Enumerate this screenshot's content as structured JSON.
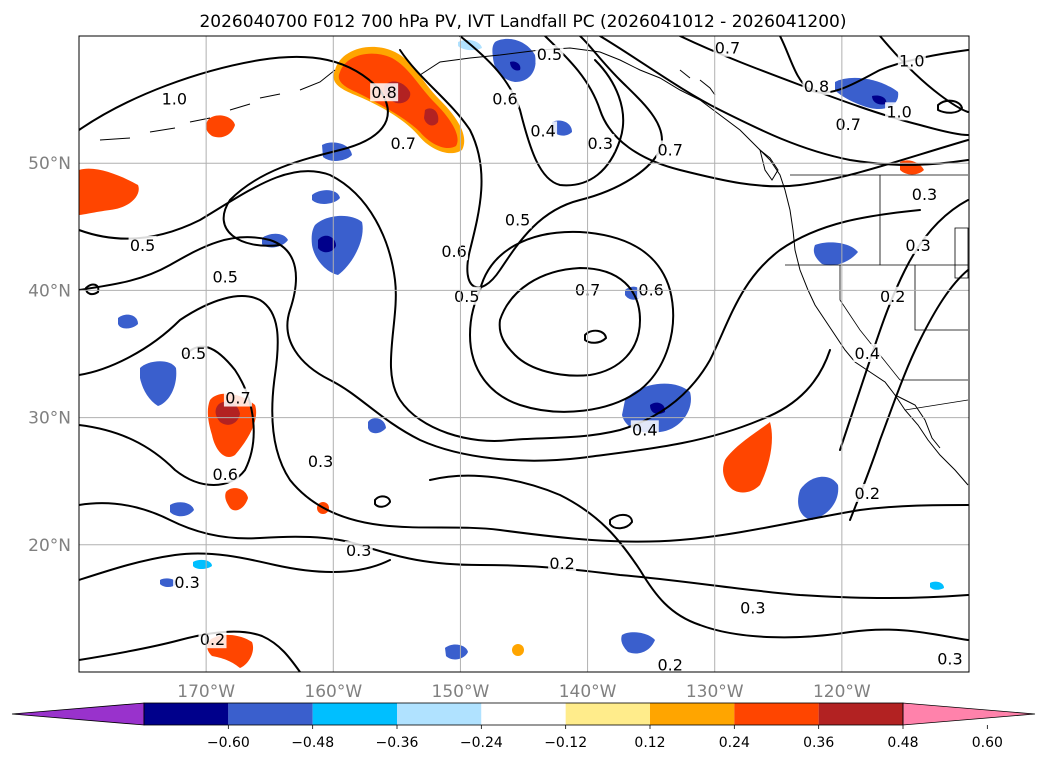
{
  "title": "2026040700 F012 700 hPa PV, IVT Landfall PC (2026041012 - 2026041200)",
  "map": {
    "extent": {
      "lon_min": -180,
      "lon_max": -110,
      "lat_min": 10,
      "lat_max": 60
    },
    "lon_ticks": [
      {
        "lon": -170,
        "label": "170°W"
      },
      {
        "lon": -160,
        "label": "160°W"
      },
      {
        "lon": -150,
        "label": "150°W"
      },
      {
        "lon": -140,
        "label": "140°W"
      },
      {
        "lon": -130,
        "label": "130°W"
      },
      {
        "lon": -120,
        "label": "120°W"
      }
    ],
    "lat_ticks": [
      {
        "lat": 50,
        "label": "50°N"
      },
      {
        "lat": 40,
        "label": "40°N"
      },
      {
        "lat": 30,
        "label": "30°N"
      },
      {
        "lat": 20,
        "label": "20°N"
      }
    ],
    "grid": true,
    "contour_labels": [
      {
        "text": "1.0",
        "lon": -172.5,
        "lat": 55.0
      },
      {
        "text": "0.8",
        "lon": -156.0,
        "lat": 55.5
      },
      {
        "text": "0.7",
        "lon": -154.5,
        "lat": 51.5
      },
      {
        "text": "0.6",
        "lon": -146.5,
        "lat": 55.0
      },
      {
        "text": "0.5",
        "lon": -143.0,
        "lat": 58.5
      },
      {
        "text": "0.4",
        "lon": -143.5,
        "lat": 52.5
      },
      {
        "text": "0.3",
        "lon": -139.0,
        "lat": 51.5
      },
      {
        "text": "0.7",
        "lon": -129.0,
        "lat": 59.0
      },
      {
        "text": "0.8",
        "lon": -122.0,
        "lat": 56.0
      },
      {
        "text": "0.7",
        "lon": -119.5,
        "lat": 53.0
      },
      {
        "text": "0.7",
        "lon": -133.5,
        "lat": 51.0
      },
      {
        "text": "1.0",
        "lon": -114.5,
        "lat": 58.0
      },
      {
        "text": "1.0",
        "lon": -115.5,
        "lat": 54.0
      },
      {
        "text": "0.3",
        "lon": -113.5,
        "lat": 47.5
      },
      {
        "text": "0.3",
        "lon": -114.0,
        "lat": 43.5
      },
      {
        "text": "0.2",
        "lon": -116.0,
        "lat": 39.5
      },
      {
        "text": "0.5",
        "lon": -175.0,
        "lat": 43.5
      },
      {
        "text": "0.5",
        "lon": -168.5,
        "lat": 41.0
      },
      {
        "text": "0.5",
        "lon": -171.0,
        "lat": 35.0
      },
      {
        "text": "0.7",
        "lon": -167.5,
        "lat": 31.5
      },
      {
        "text": "0.6",
        "lon": -168.5,
        "lat": 25.5
      },
      {
        "text": "0.6",
        "lon": -150.5,
        "lat": 43.0
      },
      {
        "text": "0.5",
        "lon": -145.5,
        "lat": 45.5
      },
      {
        "text": "0.5",
        "lon": -149.5,
        "lat": 39.5
      },
      {
        "text": "0.7",
        "lon": -140.0,
        "lat": 40.0
      },
      {
        "text": "0.6",
        "lon": -135.0,
        "lat": 40.0
      },
      {
        "text": "0.4",
        "lon": -135.5,
        "lat": 29.0
      },
      {
        "text": "0.4",
        "lon": -118.0,
        "lat": 35.0
      },
      {
        "text": "0.3",
        "lon": -161.0,
        "lat": 26.5
      },
      {
        "text": "0.3",
        "lon": -158.0,
        "lat": 19.5
      },
      {
        "text": "0.3",
        "lon": -171.5,
        "lat": 17.0
      },
      {
        "text": "0.2",
        "lon": -142.0,
        "lat": 18.5
      },
      {
        "text": "0.2",
        "lon": -118.0,
        "lat": 24.0
      },
      {
        "text": "0.3",
        "lon": -127.0,
        "lat": 15.0
      },
      {
        "text": "0.2",
        "lon": -169.5,
        "lat": 12.5
      },
      {
        "text": "0.2",
        "lon": -133.5,
        "lat": 10.5
      },
      {
        "text": "0.3",
        "lon": -111.5,
        "lat": 11.0
      }
    ]
  },
  "colorbar": {
    "colors": [
      "#9932cc",
      "#00008b",
      "#3a5fcd",
      "#00bfff",
      "#b0e2ff",
      "#ffffff",
      "#ffec8b",
      "#ffa500",
      "#ff4500",
      "#b22222",
      "#ff82ab"
    ],
    "tick_labels": [
      "−0.60",
      "−0.48",
      "−0.36",
      "−0.24",
      "−0.12",
      "0.12",
      "0.24",
      "0.36",
      "0.48",
      "0.60"
    ]
  }
}
